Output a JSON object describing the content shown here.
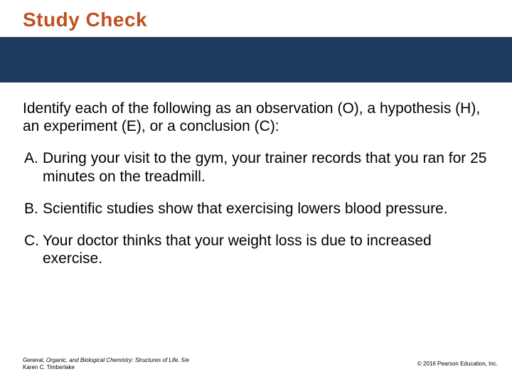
{
  "title": "Study Check",
  "prompt": "Identify each of the following as an observation (O), a hypothesis (H), an experiment (E), or a conclusion (C):",
  "items": [
    {
      "marker": "A.",
      "text": "During your visit to the gym, your trainer records that you ran for 25 minutes on the treadmill."
    },
    {
      "marker": "B.",
      "text": "Scientific studies show that exercising lowers blood pressure."
    },
    {
      "marker": "C.",
      "text": "Your doctor thinks that your weight loss is due to increased exercise."
    }
  ],
  "footer": {
    "book_title": "General, Organic, and Biological Chemistry: Structures of Life, 5/e",
    "author": "Karen C. Timberlake",
    "copyright": "© 2016 Pearson Education, Inc."
  },
  "colors": {
    "title_color": "#c05020",
    "banner_color": "#1e3a5f",
    "text_color": "#000000",
    "background": "#ffffff"
  },
  "typography": {
    "title_fontsize": 28,
    "body_fontsize": 21,
    "footer_fontsize": 8
  }
}
